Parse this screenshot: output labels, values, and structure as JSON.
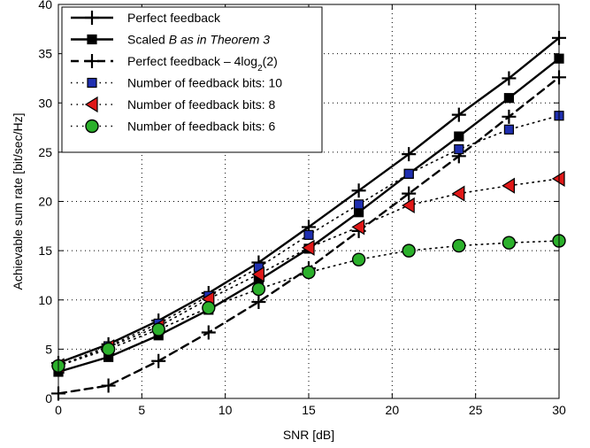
{
  "chart_data": {
    "type": "line",
    "xlabel": "SNR [dB]",
    "ylabel": "Achievable sum rate [bit/sec/Hz]",
    "xlim": [
      0,
      30
    ],
    "ylim": [
      0,
      40
    ],
    "xticks": [
      0,
      5,
      10,
      15,
      20,
      25,
      30
    ],
    "yticks": [
      0,
      5,
      10,
      15,
      20,
      25,
      30,
      35,
      40
    ],
    "grid": "dotted",
    "legend_position": "top-left",
    "x": [
      0,
      3,
      6,
      9,
      12,
      15,
      18,
      21,
      24,
      27,
      30
    ],
    "series": [
      {
        "name": "Perfect feedback",
        "legend": {
          "pre": "Perfect feedback",
          "italic": "",
          "sub": "",
          "post": ""
        },
        "values": [
          3.6,
          5.5,
          7.9,
          10.7,
          13.8,
          17.4,
          21.1,
          24.8,
          28.8,
          32.5,
          36.6
        ],
        "marker": "plus",
        "line": "solid",
        "color": "#000000",
        "fill": "none"
      },
      {
        "name": "Scaled B as in Theorem 3",
        "legend": {
          "pre": "Scaled ",
          "italic": "B as in Theorem 3",
          "sub": "",
          "post": ""
        },
        "values": [
          2.7,
          4.2,
          6.4,
          9.0,
          12.0,
          15.2,
          18.9,
          22.8,
          26.6,
          30.5,
          34.5
        ],
        "marker": "square",
        "line": "solid",
        "color": "#000000",
        "fill": "#000000"
      },
      {
        "name": "Perfect feedback − 4log2(2)",
        "legend": {
          "pre": "Perfect feedback – 4log",
          "italic": "",
          "sub": "2",
          "post": "(2)"
        },
        "values": [
          0.5,
          1.3,
          3.8,
          6.7,
          9.8,
          13.2,
          17.0,
          20.8,
          24.6,
          28.6,
          32.6
        ],
        "marker": "plus",
        "line": "dashed",
        "color": "#000000",
        "fill": "none"
      },
      {
        "name": "Number of feedback bits: 10",
        "legend": {
          "pre": "Number of feedback bits: 10",
          "italic": "",
          "sub": "",
          "post": ""
        },
        "values": [
          3.3,
          5.3,
          7.6,
          10.4,
          13.3,
          16.6,
          19.7,
          22.8,
          25.3,
          27.3,
          28.7
        ],
        "marker": "square",
        "line": "dotted",
        "color": "#000000",
        "fill": "#1f2fb0"
      },
      {
        "name": "Number of feedback bits: 8",
        "legend": {
          "pre": "Number of feedback bits: 8",
          "italic": "",
          "sub": "",
          "post": ""
        },
        "values": [
          3.3,
          5.2,
          7.3,
          10.1,
          12.6,
          15.3,
          17.4,
          19.6,
          20.8,
          21.6,
          22.3
        ],
        "marker": "triangle-left",
        "line": "dotted",
        "color": "#000000",
        "fill": "#e01818"
      },
      {
        "name": "Number of feedback bits: 6",
        "legend": {
          "pre": "Number of feedback bits: 6",
          "italic": "",
          "sub": "",
          "post": ""
        },
        "values": [
          3.3,
          5.0,
          7.0,
          9.2,
          11.1,
          12.8,
          14.1,
          15.0,
          15.5,
          15.8,
          16.0
        ],
        "marker": "circle",
        "line": "dotted",
        "color": "#000000",
        "fill": "#2bb02b"
      }
    ]
  }
}
